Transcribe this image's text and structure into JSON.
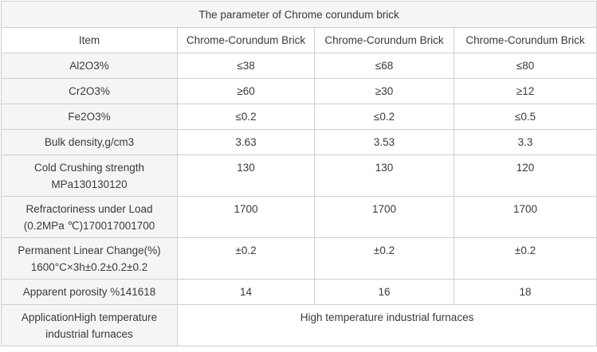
{
  "title": "The parameter of Chrome corundum brick",
  "header": [
    "Item",
    "Chrome-Corundum Brick",
    "Chrome-Corundum Brick",
    "Chrome-Corundum Brick"
  ],
  "rows": [
    {
      "item": "Al2O3%",
      "v": [
        "≤38",
        "≤68",
        "≤80"
      ]
    },
    {
      "item": "Cr2O3%",
      "v": [
        "≥60",
        "≥30",
        "≥12"
      ]
    },
    {
      "item": "Fe2O3%",
      "v": [
        "≤0.2",
        "≤0.2",
        "≤0.5"
      ]
    },
    {
      "item": "Bulk density,g/cm3",
      "v": [
        "3.63",
        "3.53",
        "3.3"
      ]
    },
    {
      "item": "Cold Crushing strength MPa130130120",
      "v": [
        "130",
        "130",
        "120"
      ]
    },
    {
      "item": "Refractoriness under Load (0.2MPa ℃)170017001700",
      "v": [
        "1700",
        "1700",
        "1700"
      ]
    },
    {
      "item": "Permanent Linear Change(%) 1600°C×3h±0.2±0.2±0.2",
      "v": [
        "±0.2",
        "±0.2",
        "±0.2"
      ]
    },
    {
      "item": "Apparent porosity %141618",
      "v": [
        "14",
        "16",
        "18"
      ]
    }
  ],
  "application": {
    "item": "ApplicationHigh temperature industrial furnaces",
    "value": "High temperature industrial furnaces"
  }
}
